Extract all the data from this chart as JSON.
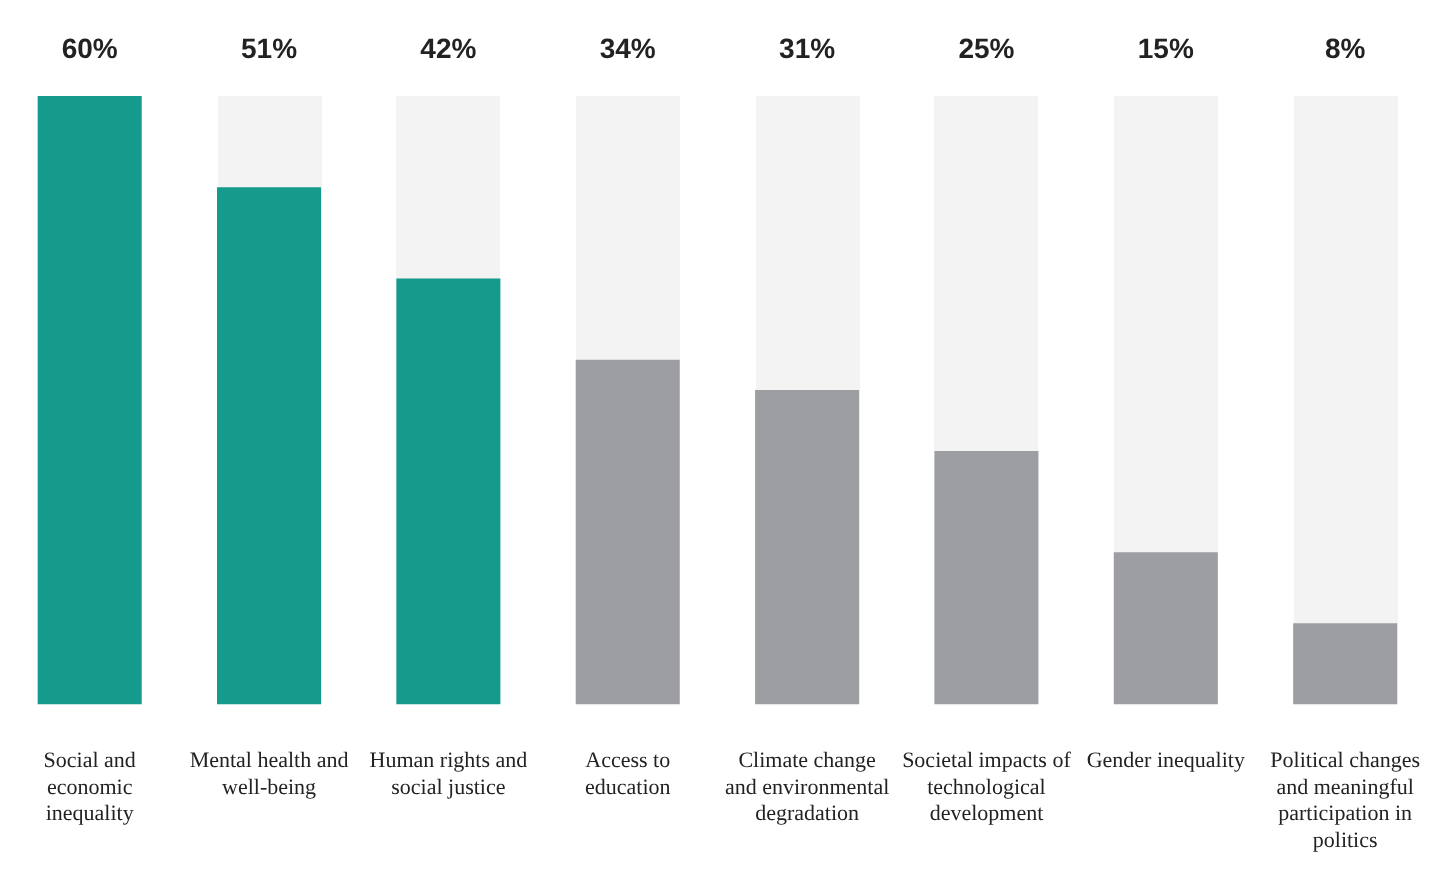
{
  "chart_data": {
    "type": "bar",
    "categories": [
      "Social and economic inequality",
      "Mental health and well-being",
      "Human rights and social justice",
      "Access to education",
      "Climate change and environmental degradation",
      "Societal impacts of technological development",
      "Gender inequality",
      "Political changes and meaningful participation in politics"
    ],
    "values": [
      60,
      51,
      42,
      34,
      31,
      25,
      15,
      8
    ],
    "colors": [
      "#159a8c",
      "#159a8c",
      "#159a8c",
      "#9d9ea2",
      "#9d9ea2",
      "#9d9ea2",
      "#9d9ea2",
      "#9d9ea2"
    ],
    "value_labels": [
      "60%",
      "51%",
      "42%",
      "34%",
      "31%",
      "25%",
      "15%",
      "8%"
    ],
    "grid": false,
    "legend": false,
    "tick_labels": "x"
  }
}
